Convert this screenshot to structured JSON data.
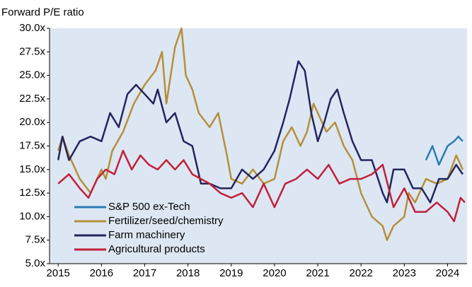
{
  "chart_data": {
    "type": "line",
    "subtitle": "Forward P/E ratio",
    "xlim": [
      2014.8,
      2024.45
    ],
    "xticks": [
      2015,
      2016,
      2017,
      2018,
      2019,
      2020,
      2021,
      2022,
      2023,
      2024
    ],
    "ylim": [
      5,
      30
    ],
    "yticks": [
      {
        "value": 5,
        "label": "5.0x"
      },
      {
        "value": 7.5,
        "label": "7.5x"
      },
      {
        "value": 10,
        "label": "10.0x"
      },
      {
        "value": 12.5,
        "label": "12.5x"
      },
      {
        "value": 15,
        "label": "15.0x"
      },
      {
        "value": 17.5,
        "label": "17.5x"
      },
      {
        "value": 20,
        "label": "20.0x"
      },
      {
        "value": 22.5,
        "label": "22.5x"
      },
      {
        "value": 25,
        "label": "25.0x"
      },
      {
        "value": 27.5,
        "label": "27.5x"
      },
      {
        "value": 30,
        "label": "30.0x"
      }
    ],
    "legend": "lower left",
    "series": [
      {
        "name": "S&P 500 ex-Tech",
        "color": "#2b7bb0",
        "x": [
          2023.5,
          2023.65,
          2023.8,
          2024.0,
          2024.15,
          2024.25,
          2024.35
        ],
        "values": [
          16,
          17.5,
          15.5,
          17.5,
          18,
          18.5,
          18
        ]
      },
      {
        "name": "Fertilizer/seed/chemistry",
        "color": "#b58f3a",
        "x": [
          2015.0,
          2015.1,
          2015.25,
          2015.5,
          2015.75,
          2016.0,
          2016.1,
          2016.25,
          2016.5,
          2016.75,
          2017.0,
          2017.25,
          2017.4,
          2017.5,
          2017.7,
          2017.85,
          2017.95,
          2018.1,
          2018.25,
          2018.5,
          2018.7,
          2018.9,
          2019.0,
          2019.25,
          2019.5,
          2019.75,
          2020.0,
          2020.2,
          2020.4,
          2020.6,
          2020.75,
          2020.9,
          2021.0,
          2021.2,
          2021.4,
          2021.6,
          2021.8,
          2022.0,
          2022.25,
          2022.5,
          2022.6,
          2022.75,
          2023.0,
          2023.1,
          2023.25,
          2023.5,
          2023.75,
          2024.0,
          2024.2,
          2024.35
        ],
        "values": [
          17,
          18.5,
          16.5,
          14,
          12.5,
          15,
          14,
          17,
          19,
          22,
          24,
          25.5,
          27.5,
          22,
          28,
          30,
          25,
          23.5,
          21,
          19.5,
          21,
          16.5,
          14,
          13.5,
          15,
          13.5,
          14,
          18,
          19.5,
          17.5,
          19,
          22,
          21,
          19,
          20,
          17.5,
          16,
          12.5,
          10,
          9,
          7.5,
          9,
          10,
          12.5,
          11.5,
          14,
          13.5,
          14,
          16.5,
          15
        ]
      },
      {
        "name": "Farm machinery",
        "color": "#24245e",
        "x": [
          2015.0,
          2015.1,
          2015.25,
          2015.5,
          2015.75,
          2016.0,
          2016.2,
          2016.4,
          2016.6,
          2016.8,
          2017.0,
          2017.2,
          2017.3,
          2017.5,
          2017.7,
          2017.9,
          2018.1,
          2018.3,
          2018.5,
          2018.75,
          2019.0,
          2019.25,
          2019.5,
          2019.75,
          2020.0,
          2020.2,
          2020.35,
          2020.55,
          2020.7,
          2020.85,
          2021.0,
          2021.15,
          2021.3,
          2021.45,
          2021.6,
          2021.8,
          2022.0,
          2022.25,
          2022.5,
          2022.6,
          2022.75,
          2023.0,
          2023.2,
          2023.4,
          2023.6,
          2023.8,
          2024.0,
          2024.2,
          2024.35
        ],
        "values": [
          16,
          18.5,
          16,
          18,
          18.5,
          18,
          21,
          19.5,
          23,
          24,
          23,
          22,
          23.5,
          20,
          21,
          18,
          17.5,
          13.5,
          13.5,
          13,
          13,
          15,
          14,
          15,
          17,
          20,
          22.5,
          26.5,
          25.5,
          21,
          18,
          20,
          22.5,
          23.5,
          21,
          18,
          16,
          16,
          12.5,
          11.5,
          15,
          15,
          13,
          13,
          11.5,
          14,
          14,
          15.5,
          14.5
        ]
      },
      {
        "name": "Agricultural products",
        "color": "#c0203a",
        "x": [
          2015.0,
          2015.25,
          2015.5,
          2015.7,
          2015.9,
          2016.1,
          2016.3,
          2016.5,
          2016.7,
          2016.9,
          2017.1,
          2017.3,
          2017.5,
          2017.7,
          2017.9,
          2018.1,
          2018.3,
          2018.5,
          2018.75,
          2019.0,
          2019.25,
          2019.5,
          2019.75,
          2020.0,
          2020.25,
          2020.5,
          2020.75,
          2021.0,
          2021.25,
          2021.5,
          2021.75,
          2022.0,
          2022.25,
          2022.5,
          2022.75,
          2023.0,
          2023.25,
          2023.5,
          2023.75,
          2024.0,
          2024.15,
          2024.3,
          2024.4
        ],
        "values": [
          13.5,
          14.5,
          13,
          12,
          14,
          15,
          14.5,
          17,
          15,
          16.5,
          15.5,
          15,
          16,
          15,
          16,
          14.5,
          14,
          13.5,
          12.5,
          12,
          12.5,
          11,
          13.5,
          11,
          13.5,
          14,
          15,
          14,
          15.5,
          13.5,
          14,
          14,
          14.5,
          15.5,
          11,
          13,
          10.5,
          10.5,
          11.5,
          10.5,
          9.5,
          12,
          11.5
        ]
      }
    ]
  }
}
